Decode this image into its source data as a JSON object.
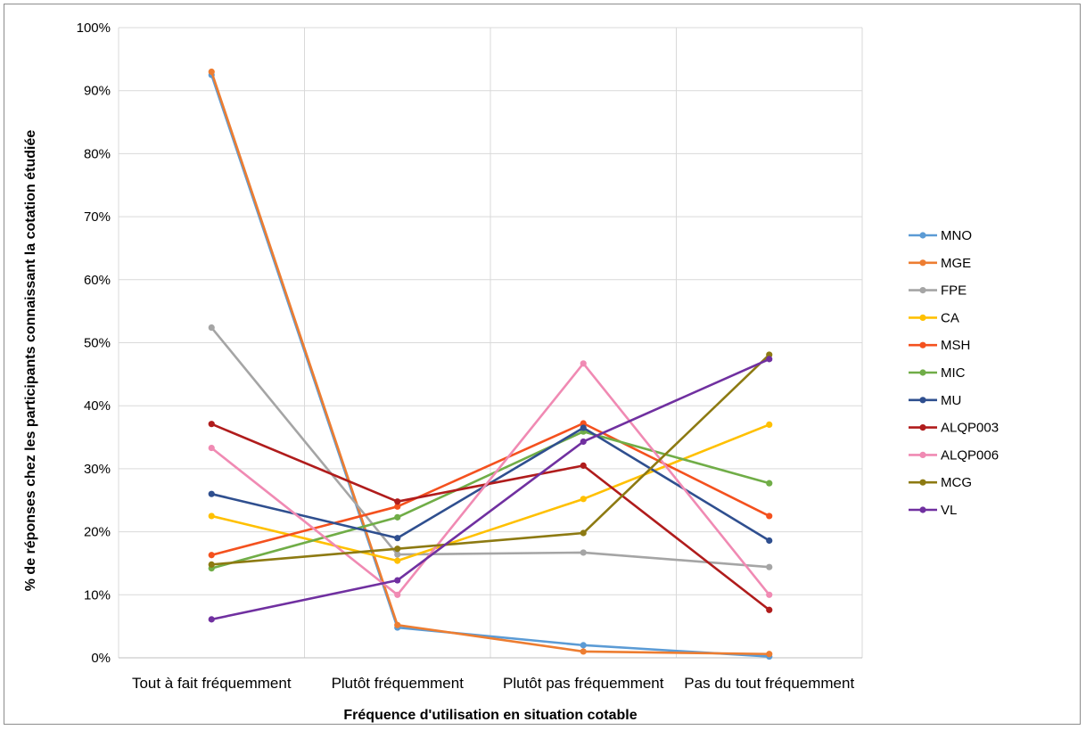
{
  "chart_data": {
    "type": "line",
    "title": "",
    "xlabel": "Fréquence d'utilisation en situation cotable",
    "ylabel": "% de réponses chez les participants connaissant la cotation étudiée",
    "categories": [
      "Tout à fait fréquemment",
      "Plutôt fréquemment",
      "Plutôt pas fréquemment",
      "Pas du tout fréquemment"
    ],
    "yticks": [
      "0%",
      "10%",
      "20%",
      "30%",
      "40%",
      "50%",
      "60%",
      "70%",
      "80%",
      "90%",
      "100%"
    ],
    "ylim": [
      0,
      100
    ],
    "grid": true,
    "legend_position": "right",
    "series": [
      {
        "name": "MNO",
        "color": "#5b9bd5",
        "values": [
          92.5,
          4.8,
          2.0,
          0.2
        ]
      },
      {
        "name": "MGE",
        "color": "#ed7d31",
        "values": [
          93.0,
          5.2,
          1.0,
          0.6
        ]
      },
      {
        "name": "FPE",
        "color": "#a5a5a5",
        "values": [
          52.4,
          16.4,
          16.7,
          14.4
        ]
      },
      {
        "name": "CA",
        "color": "#ffc000",
        "values": [
          22.5,
          15.4,
          25.2,
          37.0
        ]
      },
      {
        "name": "MSH",
        "color": "#f4511e",
        "values": [
          16.3,
          24.0,
          37.2,
          22.5
        ]
      },
      {
        "name": "MIC",
        "color": "#70ad47",
        "values": [
          14.2,
          22.3,
          35.9,
          27.7
        ]
      },
      {
        "name": "MU",
        "color": "#2f4f8f",
        "values": [
          26.0,
          19.0,
          36.5,
          18.6
        ]
      },
      {
        "name": "ALQP003",
        "color": "#b01c1c",
        "values": [
          37.1,
          24.8,
          30.5,
          7.6
        ]
      },
      {
        "name": "ALQP006",
        "color": "#f08ab3",
        "values": [
          33.3,
          10.0,
          46.7,
          10.0
        ]
      },
      {
        "name": "MCG",
        "color": "#8d7a12",
        "values": [
          14.8,
          17.3,
          19.8,
          48.1
        ]
      },
      {
        "name": "VL",
        "color": "#7030a0",
        "values": [
          6.1,
          12.3,
          34.3,
          47.4
        ]
      }
    ]
  }
}
